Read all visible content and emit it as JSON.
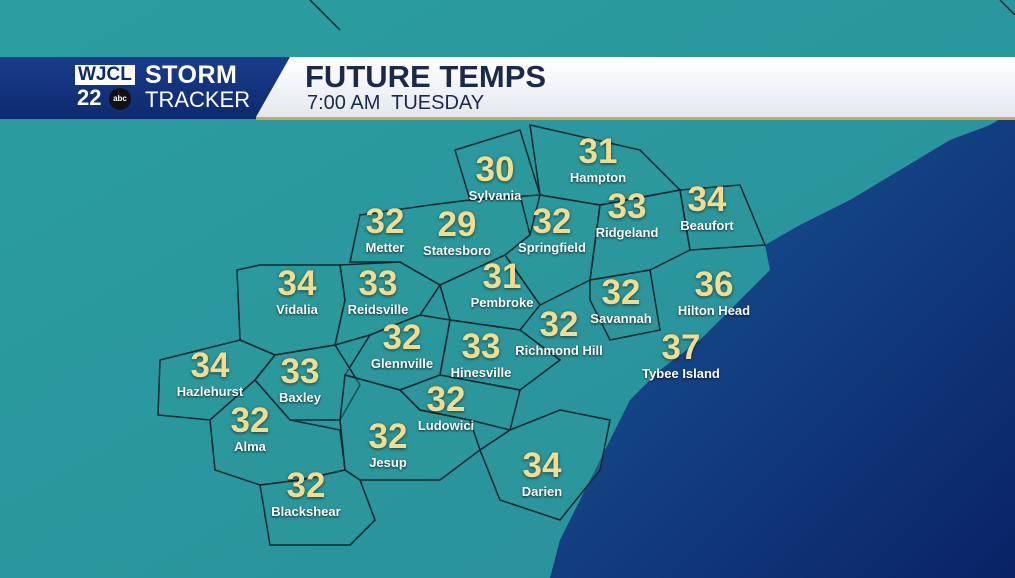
{
  "brand": {
    "station": "WJCL",
    "channel": "22",
    "network": "abc",
    "line1": "STORM",
    "line2": "TRACKER"
  },
  "header": {
    "title": "FUTURE TEMPS",
    "subtitle": "7:00 AM  TUESDAY"
  },
  "colors": {
    "land": "#2a9a9c",
    "ocean": "#0e2f78",
    "temp_text": "#f3dc8e",
    "label_text": "#ffffff"
  },
  "cities": [
    {
      "name": "Sylvania",
      "temp": "30"
    },
    {
      "name": "Hampton",
      "temp": "31"
    },
    {
      "name": "Metter",
      "temp": "32"
    },
    {
      "name": "Statesboro",
      "temp": "29"
    },
    {
      "name": "Springfield",
      "temp": "32"
    },
    {
      "name": "Ridgeland",
      "temp": "33"
    },
    {
      "name": "Beaufort",
      "temp": "34"
    },
    {
      "name": "Vidalia",
      "temp": "34"
    },
    {
      "name": "Reidsville",
      "temp": "33"
    },
    {
      "name": "Pembroke",
      "temp": "31"
    },
    {
      "name": "Savannah",
      "temp": "32"
    },
    {
      "name": "Hilton Head",
      "temp": "36"
    },
    {
      "name": "Richmond Hill",
      "temp": "32"
    },
    {
      "name": "Glennville",
      "temp": "32"
    },
    {
      "name": "Hinesville",
      "temp": "33"
    },
    {
      "name": "Tybee Island",
      "temp": "37"
    },
    {
      "name": "Hazlehurst",
      "temp": "34"
    },
    {
      "name": "Baxley",
      "temp": "33"
    },
    {
      "name": "Alma",
      "temp": "32"
    },
    {
      "name": "Ludowici",
      "temp": "32"
    },
    {
      "name": "Jesup",
      "temp": "32"
    },
    {
      "name": "Darien",
      "temp": "34"
    },
    {
      "name": "Blackshear",
      "temp": "32"
    }
  ]
}
